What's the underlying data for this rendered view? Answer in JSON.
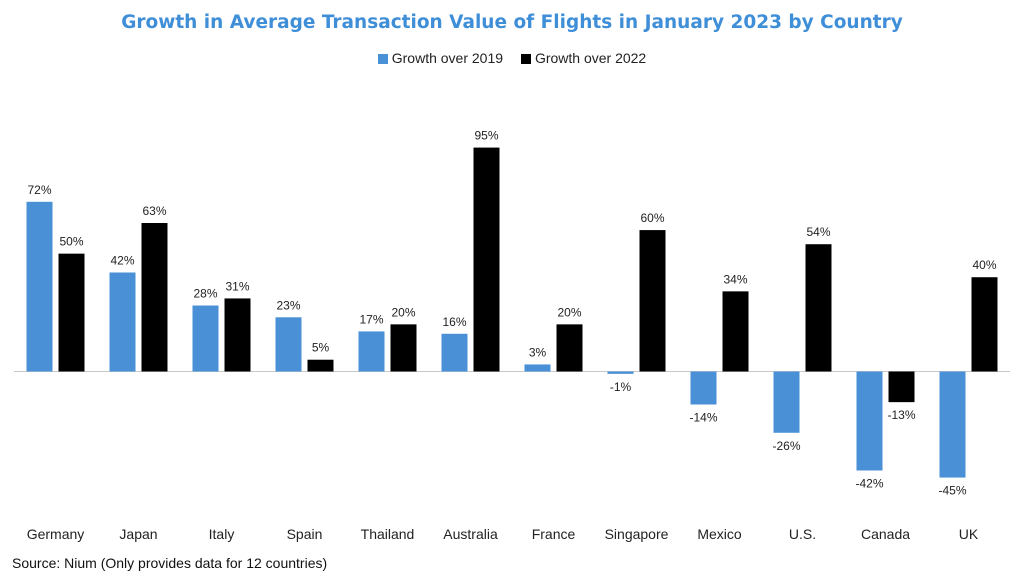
{
  "chart_data": {
    "type": "bar",
    "title": "Growth in Average Transaction Value of Flights in January 2023 by Country",
    "categories": [
      "Germany",
      "Japan",
      "Italy",
      "Spain",
      "Thailand",
      "Australia",
      "France",
      "Singapore",
      "Mexico",
      "U.S.",
      "Canada",
      "UK"
    ],
    "series": [
      {
        "name": "Growth over 2019",
        "color": "#4a90d6",
        "values": [
          72,
          42,
          28,
          23,
          17,
          16,
          3,
          -1,
          -14,
          -26,
          -42,
          -45
        ],
        "labels": [
          "72%",
          "42%",
          "28%",
          "23%",
          "17%",
          "16%",
          "3%",
          "-1%",
          "-14%",
          "-26%",
          "-42%",
          "-45%"
        ]
      },
      {
        "name": "Growth over 2022",
        "color": "#000000",
        "values": [
          50,
          63,
          31,
          5,
          20,
          95,
          20,
          60,
          34,
          54,
          -13,
          40
        ],
        "labels": [
          "50%",
          "63%",
          "31%",
          "5%",
          "20%",
          "95%",
          "20%",
          "60%",
          "34%",
          "54%",
          "-13%",
          "40%"
        ]
      }
    ],
    "legend_position": "top-center",
    "grid": false,
    "ylim": [
      -50,
      100
    ]
  },
  "source": "Source: Nium (Only provides data for 12 countries)"
}
